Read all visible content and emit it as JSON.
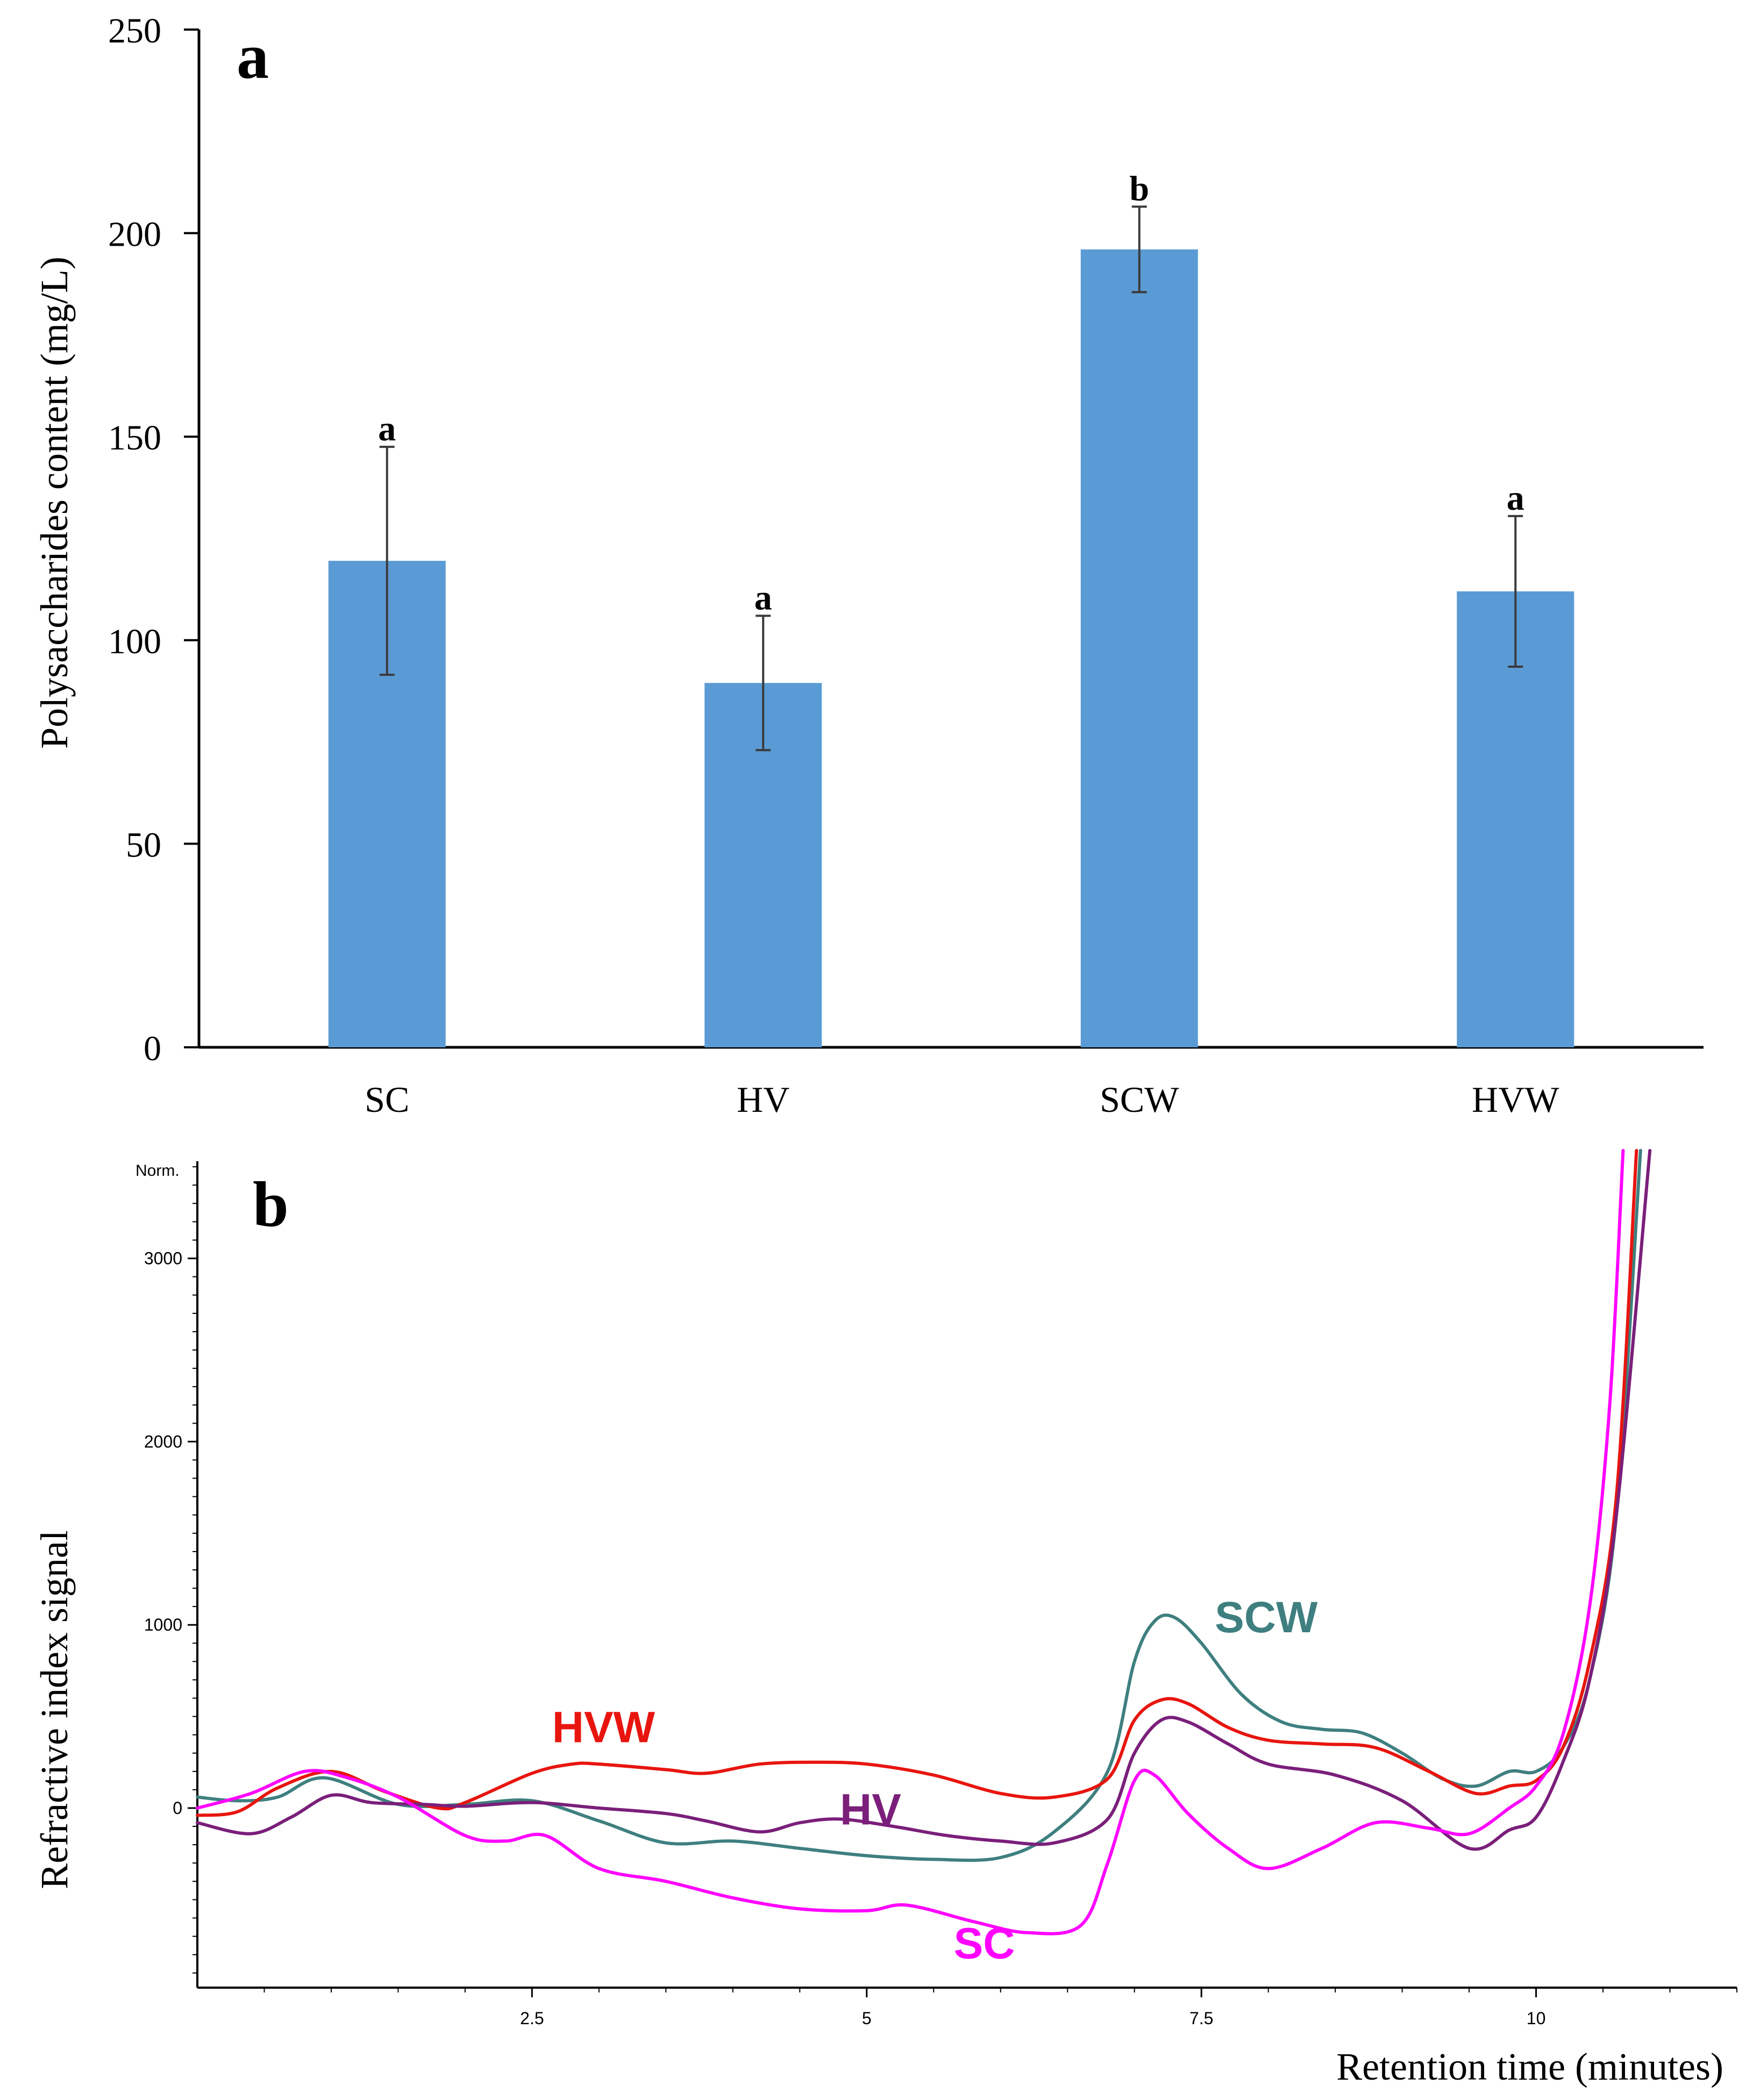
{
  "chart_data": [
    {
      "panel_label": "a",
      "type": "bar",
      "title": "",
      "xlabel": "",
      "ylabel": "Polysaccharides  content  (mg/L)",
      "ylim": [
        0,
        250
      ],
      "yticks": [
        "0",
        "50",
        "100",
        "150",
        "200",
        "250"
      ],
      "categories": [
        "SC",
        "HV",
        "SCW",
        "HVW"
      ],
      "values": [
        119.5,
        89.5,
        196.0,
        112.0
      ],
      "errors": [
        28.0,
        16.5,
        10.5,
        18.5
      ],
      "significance": [
        "a",
        "a",
        "b",
        "a"
      ],
      "bar_color": "#5b9bd5",
      "error_color": "#3a3a3a",
      "grid": false
    },
    {
      "panel_label": "b",
      "type": "line",
      "title": "",
      "xlabel": "Retention  time  (minutes)",
      "ylabel": "Refractive  index  signal",
      "y_unit_label": "Norm.",
      "xlim": [
        0,
        11.5
      ],
      "ylim": [
        -980,
        3530
      ],
      "xticks": [
        "2.5",
        "5",
        "7.5",
        "10"
      ],
      "yticks": [
        "0",
        "1000",
        "2000",
        "3000"
      ],
      "grid": false,
      "series": [
        {
          "name": "SCW",
          "color": "#3f7f7f",
          "label_at": [
            7.6,
            960
          ],
          "x": [
            0,
            0.3,
            0.6,
            0.95,
            1.5,
            2.0,
            2.5,
            3.0,
            3.5,
            4.0,
            4.5,
            5.0,
            5.5,
            6.0,
            6.4,
            6.8,
            7.0,
            7.15,
            7.3,
            7.5,
            7.8,
            8.1,
            8.4,
            8.7,
            9.0,
            9.3,
            9.55,
            9.8,
            10.0,
            10.2,
            10.4,
            10.6,
            10.78
          ],
          "y": [
            60,
            40,
            60,
            165,
            20,
            20,
            40,
            -70,
            -190,
            -180,
            -220,
            -260,
            -280,
            -270,
            -130,
            200,
            800,
            1020,
            1040,
            900,
            620,
            470,
            430,
            410,
            300,
            160,
            120,
            200,
            200,
            330,
            700,
            1600,
            3600
          ]
        },
        {
          "name": "HVW",
          "color": "#e8150f",
          "label_at": [
            2.65,
            360
          ],
          "x": [
            0,
            0.3,
            0.6,
            1.0,
            1.4,
            1.8,
            2.0,
            2.5,
            2.8,
            3.0,
            3.5,
            3.8,
            4.2,
            4.6,
            5.0,
            5.5,
            6.0,
            6.4,
            6.8,
            7.0,
            7.2,
            7.4,
            7.7,
            8.0,
            8.4,
            8.8,
            9.2,
            9.55,
            9.8,
            10.0,
            10.2,
            10.4,
            10.6,
            10.75
          ],
          "y": [
            -40,
            -20,
            110,
            200,
            90,
            0,
            30,
            190,
            240,
            240,
            210,
            190,
            240,
            250,
            240,
            180,
            80,
            60,
            160,
            480,
            590,
            570,
            440,
            370,
            350,
            330,
            200,
            80,
            120,
            150,
            330,
            800,
            1700,
            3600
          ]
        },
        {
          "name": "HV",
          "color": "#7a1f7a",
          "label_at": [
            4.8,
            -90
          ],
          "x": [
            0,
            0.4,
            0.7,
            1.0,
            1.3,
            1.7,
            2.0,
            2.5,
            3.0,
            3.5,
            3.8,
            4.2,
            4.5,
            4.8,
            5.2,
            5.6,
            6.0,
            6.4,
            6.8,
            7.0,
            7.2,
            7.4,
            7.7,
            8.0,
            8.5,
            9.0,
            9.5,
            9.8,
            10.0,
            10.2,
            10.4,
            10.6,
            10.85
          ],
          "y": [
            -80,
            -140,
            -50,
            70,
            30,
            20,
            10,
            30,
            0,
            -30,
            -70,
            -130,
            -80,
            -60,
            -100,
            -150,
            -180,
            -190,
            -60,
            300,
            480,
            470,
            350,
            240,
            180,
            40,
            -220,
            -120,
            -50,
            250,
            700,
            1600,
            3750
          ]
        },
        {
          "name": "SC",
          "color": "#ff00ff",
          "label_at": [
            5.65,
            -820
          ],
          "x": [
            0,
            0.4,
            0.8,
            1.1,
            1.5,
            2.0,
            2.3,
            2.6,
            3.0,
            3.5,
            4.0,
            4.5,
            5.0,
            5.3,
            5.8,
            6.2,
            6.6,
            6.8,
            7.0,
            7.15,
            7.4,
            7.7,
            8.0,
            8.4,
            8.8,
            9.2,
            9.5,
            9.8,
            10.0,
            10.2,
            10.4,
            10.55,
            10.65
          ],
          "y": [
            0,
            80,
            200,
            170,
            60,
            -150,
            -180,
            -150,
            -330,
            -400,
            -490,
            -550,
            -560,
            -530,
            -620,
            -680,
            -640,
            -300,
            150,
            180,
            -30,
            -220,
            -330,
            -220,
            -80,
            -110,
            -140,
            0,
            120,
            400,
            1100,
            2200,
            3600
          ]
        }
      ]
    }
  ]
}
